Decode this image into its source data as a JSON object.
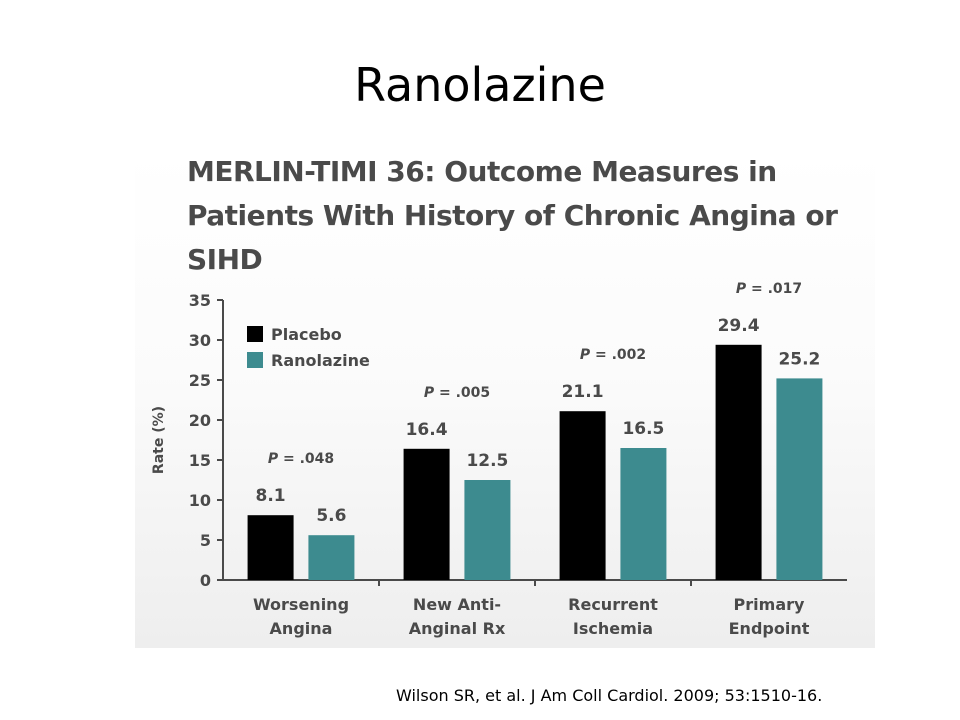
{
  "slide": {
    "title": "Ranolazine",
    "citation": "Wilson SR, et al. J Am Coll Cardiol. 2009; 53:1510-16."
  },
  "colors": {
    "placebo": "#000000",
    "ranolazine": "#3d8b8f",
    "text": "#4a4a4a"
  },
  "chart_data": {
    "type": "bar",
    "title_lines": [
      "MERLIN-TIMI 36: Outcome Measures in",
      "Patients With History of Chronic Angina or",
      "SIHD"
    ],
    "xlabel": "",
    "ylabel": "Rate (%)",
    "ylim": [
      0,
      35
    ],
    "yticks": [
      "0",
      "5",
      "10",
      "15",
      "20",
      "25",
      "30",
      "35"
    ],
    "grid": false,
    "legend_position": "top-left",
    "categories": [
      [
        "Worsening",
        "Angina"
      ],
      [
        "New Anti-",
        "Anginal Rx"
      ],
      [
        "Recurrent",
        "Ischemia"
      ],
      [
        "Primary",
        "Endpoint"
      ]
    ],
    "series": [
      {
        "name": "Placebo",
        "values": [
          8.1,
          16.4,
          21.1,
          29.4
        ],
        "labels": [
          "8.1",
          "16.4",
          "21.1",
          "29.4"
        ]
      },
      {
        "name": "Ranolazine",
        "values": [
          5.6,
          12.5,
          16.5,
          25.2
        ],
        "labels": [
          "5.6",
          "12.5",
          "16.5",
          "25.2"
        ]
      }
    ],
    "p_values": [
      ".048",
      ".005",
      ".002",
      ".017"
    ]
  }
}
